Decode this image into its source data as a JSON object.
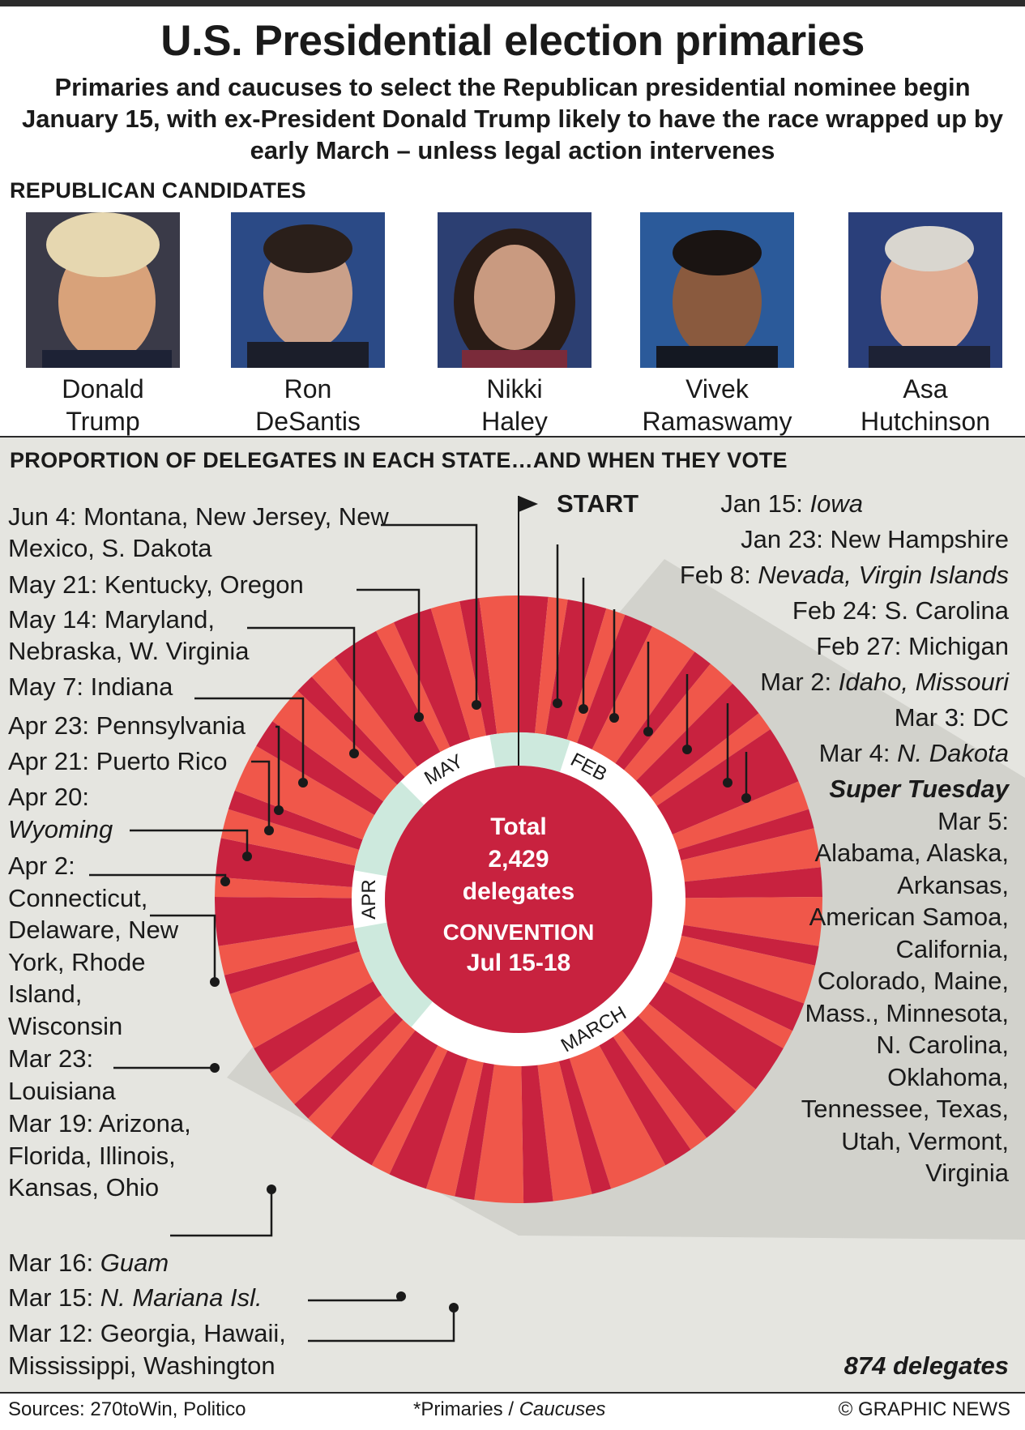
{
  "title": "U.S. Presidential election primaries",
  "subtitle": "Primaries and caucuses to select the Republican presidential nominee begin January 15, with ex-President Donald Trump likely to have the race wrapped up by early March – unless legal action intervenes",
  "candidates_heading": "REPUBLICAN CANDIDATES",
  "candidates": [
    {
      "name_line1": "Donald",
      "name_line2": "Trump"
    },
    {
      "name_line1": "Ron",
      "name_line2": "DeSantis"
    },
    {
      "name_line1": "Nikki",
      "name_line2": "Haley"
    },
    {
      "name_line1": "Vivek",
      "name_line2": "Ramaswamy"
    },
    {
      "name_line1": "Asa",
      "name_line2": "Hutchinson"
    }
  ],
  "calendar_heading": "PROPORTION OF DELEGATES IN EACH STATE…AND WHEN THEY VOTE",
  "start_label": "START",
  "center": {
    "total_line1": "Total",
    "total_line2": "2,429",
    "total_line3": "delegates",
    "convention_line1": "CONVENTION",
    "convention_line2": "Jul 15-18"
  },
  "months": [
    "FEB",
    "MARCH",
    "APR",
    "MAY"
  ],
  "super_tuesday": {
    "heading": "Super Tuesday",
    "date": "Mar 5:",
    "states": "Alabama, Alaska, Arkansas, American Samoa, California, Colorado, Maine, Mass., Minnesota, N. Carolina, Oklahoma, Tennessee, Texas, Utah, Vermont, Virginia",
    "delegates": "874 delegates"
  },
  "events": [
    {
      "date": "Jan 15:",
      "places": "Iowa"
    },
    {
      "date": "Jan 23:",
      "places": "New Hampshire"
    },
    {
      "date": "Feb 8:",
      "places": "Nevada, Virgin Islands"
    },
    {
      "date": "Feb 24:",
      "places": "S. Carolina"
    },
    {
      "date": "Feb 27:",
      "places": "Michigan"
    },
    {
      "date": "Mar 2:",
      "places": "Idaho, Missouri"
    },
    {
      "date": "Mar 3:",
      "places": "DC"
    },
    {
      "date": "Mar 4:",
      "places": "N. Dakota"
    },
    {
      "date": "Mar 12:",
      "places": "Georgia, Hawaii, Mississippi, Washington"
    },
    {
      "date": "Mar 15:",
      "places": "N. Mariana Isl."
    },
    {
      "date": "Mar 16:",
      "places": "Guam"
    },
    {
      "date": "Mar 19:",
      "places": "Arizona, Florida, Illinois, Kansas, Ohio"
    },
    {
      "date": "Mar 23:",
      "places": "Louisiana"
    },
    {
      "date": "Apr 2:",
      "places": "Connecticut, Delaware, New York, Rhode Island, Wisconsin"
    },
    {
      "date": "Apr 20:",
      "places": "Wyoming"
    },
    {
      "date": "Apr 21:",
      "places": "Puerto Rico"
    },
    {
      "date": "Apr 23:",
      "places": "Pennsylvania"
    },
    {
      "date": "May 7:",
      "places": "Indiana"
    },
    {
      "date": "May 14:",
      "places": "Maryland, Nebraska, W. Virginia"
    },
    {
      "date": "May 21:",
      "places": "Kentucky, Oregon"
    },
    {
      "date": "Jun 4:",
      "places": "Montana, New Jersey, New Mexico, S. Dakota"
    }
  ],
  "footer": {
    "sources": "Sources: 270toWin, Politico",
    "legend_primaries": "*Primaries /",
    "legend_caucuses": "Caucuses",
    "credit": "© GRAPHIC NEWS"
  },
  "colors": {
    "dark_red": "#c8223f",
    "light_red": "#f0574a",
    "center": "#c8223f",
    "month_band": "#cde9dd",
    "panel_bg": "#e5e5e0"
  }
}
